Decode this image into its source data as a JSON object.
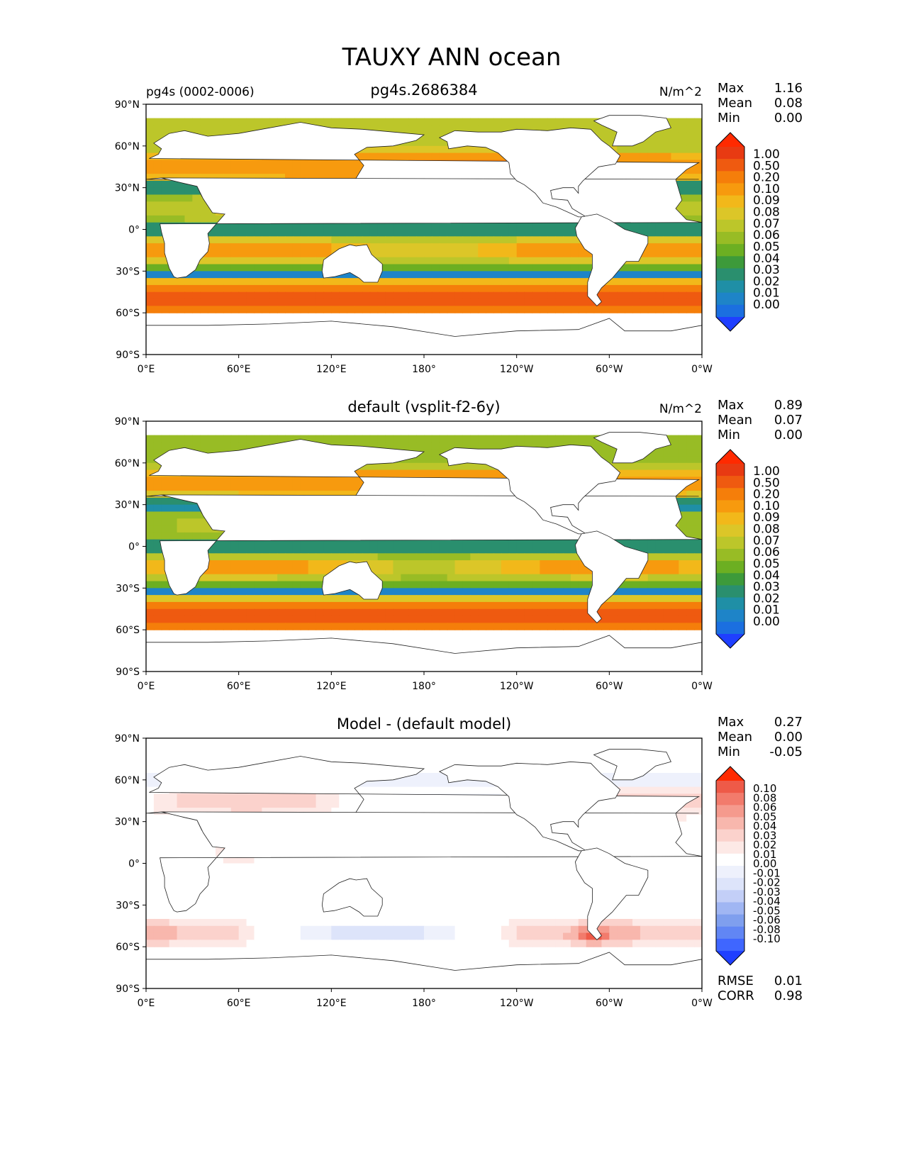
{
  "figure_title": "TAUXY ANN ocean",
  "colors": {
    "contour_levels": [
      "#1f3fff",
      "#1b6fe0",
      "#1e84c8",
      "#1f8fa6",
      "#2a8f6e",
      "#3d9a3a",
      "#6caf22",
      "#98bc25",
      "#bcc62a",
      "#dcc628",
      "#f2b81a",
      "#f79a0e",
      "#f57e0a",
      "#ef5a10",
      "#e83a12",
      "#ff2a00"
    ],
    "diff_levels": [
      "#1f3fff",
      "#3f66ff",
      "#6186f4",
      "#7f9fee",
      "#a0b6f3",
      "#c3cff7",
      "#dde4fa",
      "#eef1fc",
      "#ffffff",
      "#fde9e6",
      "#fbd2cc",
      "#f8b7ad",
      "#f59a8d",
      "#f27b6c",
      "#ee5a48",
      "#ff2a00"
    ],
    "land_outline": "#222222",
    "land_fill": "#ffffff"
  },
  "chart_data": [
    {
      "type": "heatmap",
      "left_label": "pg4s (0002-0006)",
      "title": "pg4s.2686384",
      "units": "N/m^2",
      "stats": {
        "labels": [
          "Max",
          "Mean",
          "Min"
        ],
        "values": [
          "1.16",
          "0.08",
          "0.00"
        ]
      },
      "colorbar_ticks": [
        "1.00",
        "0.50",
        "0.20",
        "0.10",
        "0.09",
        "0.08",
        "0.07",
        "0.06",
        "0.05",
        "0.04",
        "0.03",
        "0.02",
        "0.01",
        "0.00"
      ],
      "xticks": [
        "0°E",
        "60°E",
        "120°E",
        "180°",
        "120°W",
        "60°W",
        "0°W"
      ],
      "yticks": [
        "90°N",
        "60°N",
        "30°N",
        "0°",
        "30°S",
        "60°S",
        "90°S"
      ],
      "xlim": [
        0,
        360
      ],
      "ylim": [
        -90,
        90
      ]
    },
    {
      "type": "heatmap",
      "left_label": "",
      "title": "default (vsplit-f2-6y)",
      "units": "N/m^2",
      "stats": {
        "labels": [
          "Max",
          "Mean",
          "Min"
        ],
        "values": [
          "0.89",
          "0.07",
          "0.00"
        ]
      },
      "colorbar_ticks": [
        "1.00",
        "0.50",
        "0.20",
        "0.10",
        "0.09",
        "0.08",
        "0.07",
        "0.06",
        "0.05",
        "0.04",
        "0.03",
        "0.02",
        "0.01",
        "0.00"
      ],
      "xticks": [
        "0°E",
        "60°E",
        "120°E",
        "180°",
        "120°W",
        "60°W",
        "0°W"
      ],
      "yticks": [
        "90°N",
        "60°N",
        "30°N",
        "0°",
        "30°S",
        "60°S",
        "90°S"
      ],
      "xlim": [
        0,
        360
      ],
      "ylim": [
        -90,
        90
      ]
    },
    {
      "type": "heatmap",
      "left_label": "",
      "title": "Model - (default model)",
      "units": "",
      "stats": {
        "labels": [
          "Max",
          "Mean",
          "Min"
        ],
        "values": [
          "0.27",
          "0.00",
          "-0.05"
        ]
      },
      "colorbar_ticks": [
        "0.10",
        "0.08",
        "0.06",
        "0.05",
        "0.04",
        "0.03",
        "0.02",
        "0.01",
        "0.00",
        "-0.01",
        "-0.02",
        "-0.03",
        "-0.04",
        "-0.05",
        "-0.06",
        "-0.08",
        "-0.10"
      ],
      "extra_stats": {
        "labels": [
          "RMSE",
          "CORR"
        ],
        "values": [
          "0.01",
          "0.98"
        ]
      },
      "xticks": [
        "0°E",
        "60°E",
        "120°E",
        "180°",
        "120°W",
        "60°W",
        "0°W"
      ],
      "yticks": [
        "90°N",
        "60°N",
        "30°N",
        "0°",
        "30°S",
        "60°S",
        "90°S"
      ],
      "xlim": [
        0,
        360
      ],
      "ylim": [
        -90,
        90
      ]
    }
  ]
}
